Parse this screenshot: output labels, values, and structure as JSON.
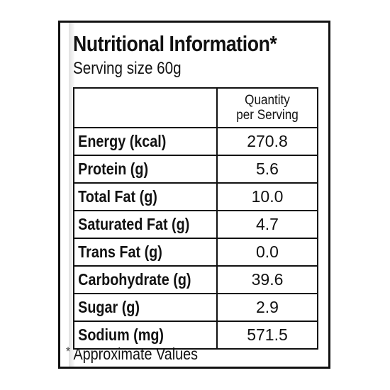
{
  "title": "Nutritional Information*",
  "serving_size": "Serving size 60g",
  "column_header": {
    "line1": "Quantity",
    "line2": "per Serving"
  },
  "rows": [
    {
      "name": "Energy (kcal)",
      "value": "270.8"
    },
    {
      "name": "Protein (g)",
      "value": "5.6"
    },
    {
      "name": "Total Fat (g)",
      "value": "10.0"
    },
    {
      "name": "Saturated Fat (g)",
      "value": "4.7"
    },
    {
      "name": "Trans Fat (g)",
      "value": "0.0"
    },
    {
      "name": "Carbohydrate (g)",
      "value": "39.6"
    },
    {
      "name": "Sugar (g)",
      "value": "2.9"
    },
    {
      "name": "Sodium (mg)",
      "value": "571.5"
    }
  ],
  "footer": {
    "star": "*",
    "text": "Approximate Values"
  }
}
